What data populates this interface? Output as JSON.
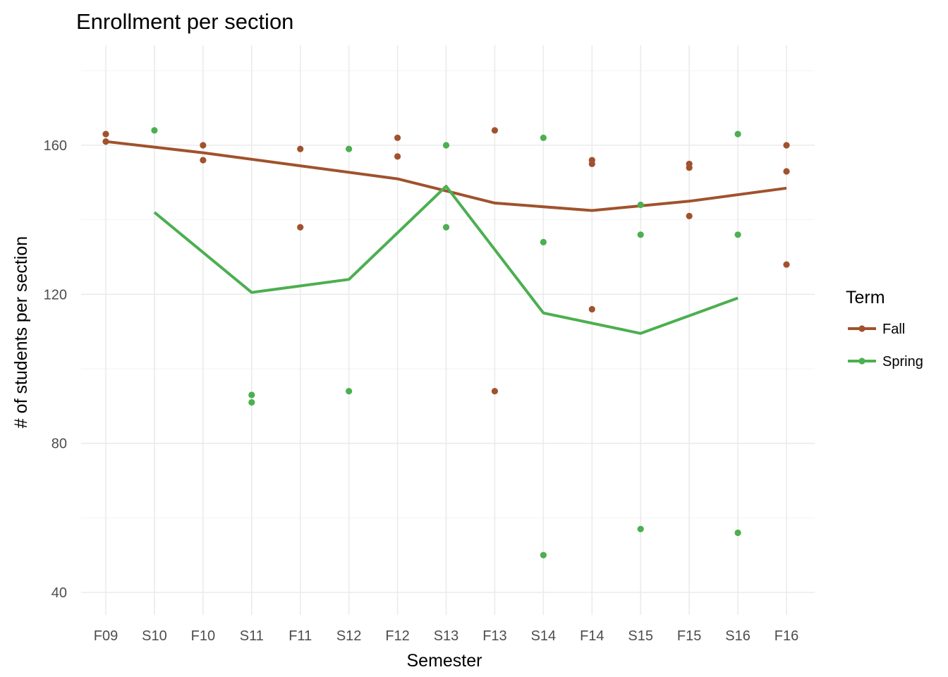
{
  "chart_data": {
    "type": "line",
    "title": "Enrollment per section",
    "xlabel": "Semester",
    "ylabel": "# of students per section",
    "categories": [
      "F09",
      "S10",
      "F10",
      "S11",
      "F11",
      "S12",
      "F12",
      "S13",
      "F13",
      "S14",
      "F14",
      "S15",
      "F15",
      "S16",
      "F16"
    ],
    "ylim": [
      34,
      184
    ],
    "yticks": [
      40,
      80,
      120,
      160
    ],
    "grid": true,
    "legend": {
      "title": "Term",
      "placement": "right"
    },
    "series": [
      {
        "name": "Fall",
        "color": "#A0522D",
        "line": [
          {
            "x": "F09",
            "y": 161
          },
          {
            "x": "F10",
            "y": 158
          },
          {
            "x": "F11",
            "y": 154.5
          },
          {
            "x": "F12",
            "y": 151
          },
          {
            "x": "F13",
            "y": 144.5
          },
          {
            "x": "F14",
            "y": 142.5
          },
          {
            "x": "F15",
            "y": 145
          },
          {
            "x": "F16",
            "y": 148.5
          }
        ],
        "points": [
          {
            "x": "F09",
            "y": 163
          },
          {
            "x": "F09",
            "y": 161
          },
          {
            "x": "F10",
            "y": 160
          },
          {
            "x": "F10",
            "y": 156
          },
          {
            "x": "F11",
            "y": 159
          },
          {
            "x": "F11",
            "y": 138
          },
          {
            "x": "F12",
            "y": 162
          },
          {
            "x": "F12",
            "y": 157
          },
          {
            "x": "F13",
            "y": 164
          },
          {
            "x": "F13",
            "y": 94
          },
          {
            "x": "F14",
            "y": 156
          },
          {
            "x": "F14",
            "y": 155
          },
          {
            "x": "F14",
            "y": 116
          },
          {
            "x": "F15",
            "y": 155
          },
          {
            "x": "F15",
            "y": 154
          },
          {
            "x": "F15",
            "y": 141
          },
          {
            "x": "F16",
            "y": 160
          },
          {
            "x": "F16",
            "y": 153
          },
          {
            "x": "F16",
            "y": 128
          }
        ]
      },
      {
        "name": "Spring",
        "color": "#4CAF50",
        "line": [
          {
            "x": "S10",
            "y": 142
          },
          {
            "x": "S11",
            "y": 120.5
          },
          {
            "x": "S12",
            "y": 124
          },
          {
            "x": "S13",
            "y": 149
          },
          {
            "x": "S14",
            "y": 115
          },
          {
            "x": "S15",
            "y": 109.5
          },
          {
            "x": "S16",
            "y": 119
          }
        ],
        "points": [
          {
            "x": "S10",
            "y": 164
          },
          {
            "x": "S11",
            "y": 93
          },
          {
            "x": "S11",
            "y": 91
          },
          {
            "x": "S12",
            "y": 159
          },
          {
            "x": "S12",
            "y": 94
          },
          {
            "x": "S13",
            "y": 160
          },
          {
            "x": "S13",
            "y": 138
          },
          {
            "x": "S14",
            "y": 162
          },
          {
            "x": "S14",
            "y": 134
          },
          {
            "x": "S14",
            "y": 50
          },
          {
            "x": "S15",
            "y": 144
          },
          {
            "x": "S15",
            "y": 136
          },
          {
            "x": "S15",
            "y": 57
          },
          {
            "x": "S16",
            "y": 163
          },
          {
            "x": "S16",
            "y": 136
          },
          {
            "x": "S16",
            "y": 56
          }
        ]
      }
    ]
  }
}
